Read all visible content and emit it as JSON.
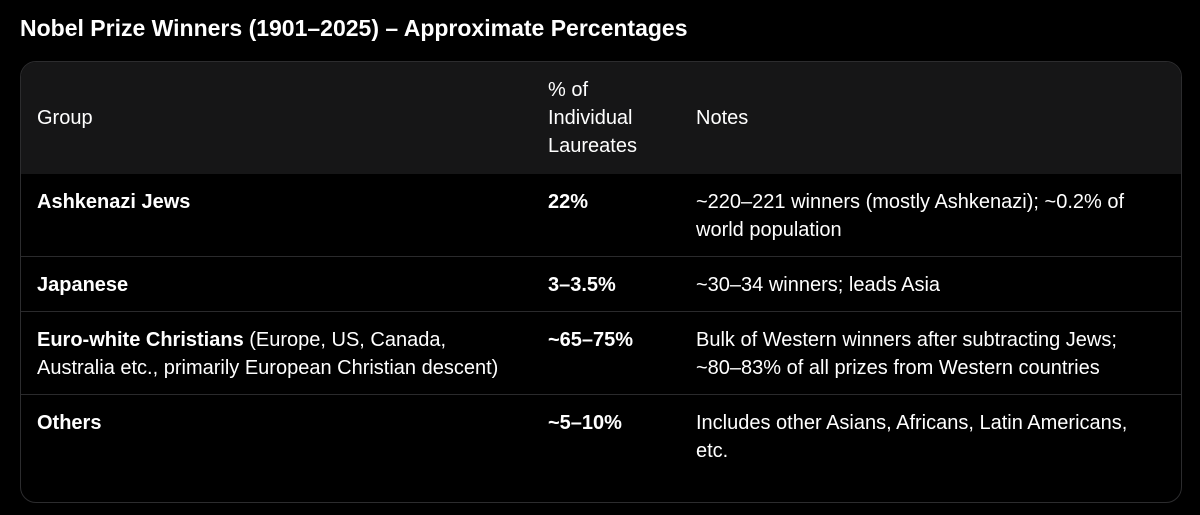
{
  "title": "Nobel Prize Winners (1901–2025) – Approximate Percentages",
  "table": {
    "headers": {
      "group": "Group",
      "percent": "% of Individual Laureates",
      "notes": "Notes"
    },
    "rows": [
      {
        "group": "Ashkenazi Jews",
        "group_detail": "",
        "percent": "22%",
        "notes": "~220–221 winners (mostly Ashkenazi); ~0.2% of world population"
      },
      {
        "group": "Japanese",
        "group_detail": "",
        "percent": "3–3.5%",
        "notes": "~30–34 winners; leads Asia"
      },
      {
        "group": "Euro-white Christians",
        "group_detail": " (Europe, US, Canada, Australia etc., primarily European Christian descent)",
        "percent": "~65–75%",
        "notes": "Bulk of Western winners after subtracting Jews; ~80–83% of all prizes from Western countries"
      },
      {
        "group": "Others",
        "group_detail": "",
        "percent": "~5–10%",
        "notes": "Includes other Asians, Africans, Latin Americans, etc."
      }
    ]
  }
}
